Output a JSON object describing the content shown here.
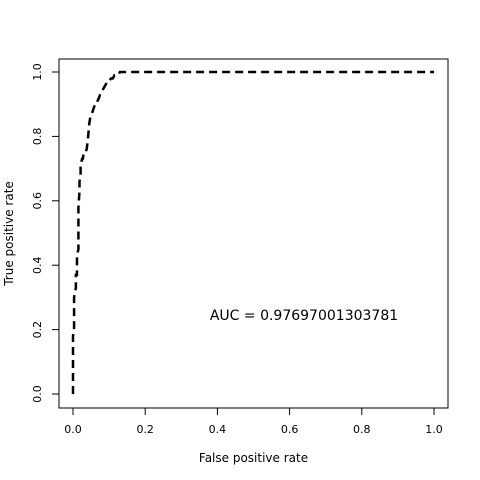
{
  "chart_data": {
    "type": "line",
    "title": "",
    "xlabel": "False positive rate",
    "ylabel": "True positive rate",
    "xlim": [
      0.0,
      1.0
    ],
    "ylim": [
      0.0,
      1.0
    ],
    "x_ticks": [
      "0.0",
      "0.2",
      "0.4",
      "0.6",
      "0.8",
      "1.0"
    ],
    "y_ticks": [
      "0.0",
      "0.2",
      "0.4",
      "0.6",
      "0.8",
      "1.0"
    ],
    "grid": false,
    "legend": "none",
    "line_style": "dashed",
    "line_color": "#000000",
    "annotation": "AUC = 0.97697001303781",
    "series": [
      {
        "x": [
          0.0,
          0.0,
          0.003,
          0.003,
          0.008,
          0.008,
          0.011,
          0.011,
          0.015,
          0.015,
          0.018,
          0.018,
          0.021,
          0.021,
          0.025,
          0.027,
          0.03,
          0.034,
          0.038,
          0.04,
          0.042,
          0.045,
          0.048,
          0.052,
          0.055,
          0.058,
          0.062,
          0.065,
          0.068,
          0.072,
          0.075,
          0.08,
          0.085,
          0.09,
          0.095,
          0.1,
          0.105,
          0.11,
          0.115,
          0.12,
          0.125,
          0.13,
          0.135,
          0.14,
          0.15,
          0.3,
          0.6,
          1.0
        ],
        "y": [
          0.0,
          0.18,
          0.2,
          0.3,
          0.33,
          0.37,
          0.37,
          0.43,
          0.45,
          0.58,
          0.63,
          0.66,
          0.68,
          0.71,
          0.73,
          0.73,
          0.75,
          0.75,
          0.76,
          0.78,
          0.8,
          0.84,
          0.86,
          0.87,
          0.88,
          0.89,
          0.9,
          0.9,
          0.91,
          0.92,
          0.93,
          0.94,
          0.95,
          0.96,
          0.97,
          0.97,
          0.98,
          0.98,
          0.99,
          0.99,
          0.99,
          1.0,
          1.0,
          1.0,
          1.0,
          1.0,
          1.0,
          1.0
        ]
      }
    ]
  }
}
